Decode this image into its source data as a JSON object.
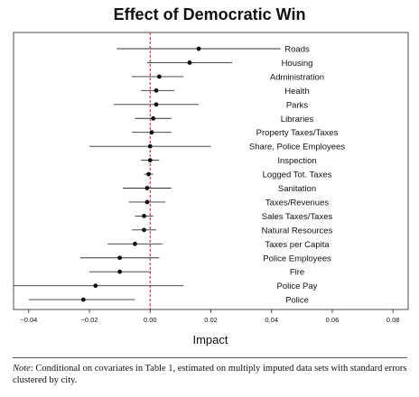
{
  "chart_data": {
    "type": "scatter",
    "title": "Effect of Democratic Win",
    "xlabel": "Impact",
    "ylabel": "",
    "xlim": [
      -0.045,
      0.085
    ],
    "xticks": [
      -0.04,
      -0.02,
      0.0,
      0.02,
      0.04,
      0.06,
      0.08
    ],
    "xtick_labels": [
      "−0.04",
      "−0.02",
      "0.00",
      "0.02",
      "0.04",
      "0.06",
      "0.08"
    ],
    "reference_line": 0.0,
    "grid": false,
    "legend": "none",
    "points": [
      {
        "label": "Roads",
        "estimate": 0.016,
        "lower": -0.011,
        "upper": 0.043
      },
      {
        "label": "Housing",
        "estimate": 0.013,
        "lower": -0.001,
        "upper": 0.027
      },
      {
        "label": "Administration",
        "estimate": 0.003,
        "lower": -0.006,
        "upper": 0.011
      },
      {
        "label": "Health",
        "estimate": 0.002,
        "lower": -0.003,
        "upper": 0.008
      },
      {
        "label": "Parks",
        "estimate": 0.002,
        "lower": -0.012,
        "upper": 0.016
      },
      {
        "label": "Libraries",
        "estimate": 0.001,
        "lower": -0.005,
        "upper": 0.007
      },
      {
        "label": "Property Taxes/Taxes",
        "estimate": 0.0005,
        "lower": -0.006,
        "upper": 0.007
      },
      {
        "label": "Share, Police Employees",
        "estimate": 0.0,
        "lower": -0.02,
        "upper": 0.02
      },
      {
        "label": "Inspection",
        "estimate": 0.0,
        "lower": -0.003,
        "upper": 0.003
      },
      {
        "label": "Logged Tot. Taxes",
        "estimate": -0.0005,
        "lower": -0.002,
        "upper": 0.001
      },
      {
        "label": "Sanitation",
        "estimate": -0.001,
        "lower": -0.009,
        "upper": 0.007
      },
      {
        "label": "Taxes/Revenues",
        "estimate": -0.001,
        "lower": -0.007,
        "upper": 0.005
      },
      {
        "label": "Sales Taxes/Taxes",
        "estimate": -0.002,
        "lower": -0.005,
        "upper": 0.001
      },
      {
        "label": "Natural Resources",
        "estimate": -0.002,
        "lower": -0.006,
        "upper": 0.002
      },
      {
        "label": "Taxes per Capita",
        "estimate": -0.005,
        "lower": -0.014,
        "upper": 0.004
      },
      {
        "label": "Police Employees",
        "estimate": -0.01,
        "lower": -0.023,
        "upper": 0.003
      },
      {
        "label": "Fire",
        "estimate": -0.01,
        "lower": -0.02,
        "upper": 0.0
      },
      {
        "label": "Police Pay",
        "estimate": -0.018,
        "lower": -0.045,
        "upper": 0.011
      },
      {
        "label": "Police",
        "estimate": -0.022,
        "lower": -0.04,
        "upper": -0.005
      }
    ]
  },
  "note": {
    "lead": "Note",
    "text": ": Conditional on covariates in Table 1, estimated on multiply imputed data sets with standard errors clustered by city."
  }
}
